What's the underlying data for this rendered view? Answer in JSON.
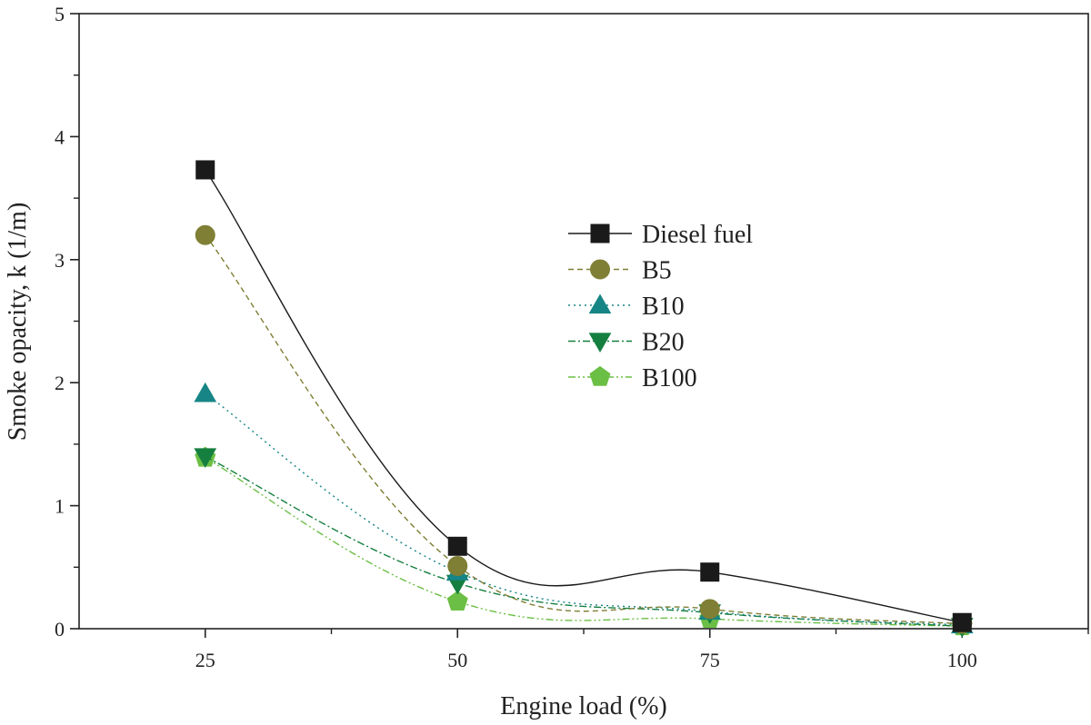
{
  "chart_data": {
    "type": "line",
    "title": "",
    "xlabel": "Engine load (%)",
    "ylabel": "Smoke opacity, k (1/m)",
    "x": [
      25,
      50,
      75,
      100
    ],
    "xlim": [
      12.5,
      112.5
    ],
    "ylim": [
      0,
      5
    ],
    "xticks": [
      25,
      50,
      75,
      100
    ],
    "yticks": [
      0,
      1,
      2,
      3,
      4,
      5
    ],
    "grid": false,
    "legend_position": "center-right",
    "series": [
      {
        "name": "Diesel fuel",
        "values": [
          3.73,
          0.67,
          0.46,
          0.05
        ],
        "color": "#1a1a1a",
        "marker": "square",
        "dash": "solid"
      },
      {
        "name": "B5",
        "values": [
          3.2,
          0.51,
          0.16,
          0.04
        ],
        "color": "#7f7f35",
        "marker": "circle",
        "dash": "dashed"
      },
      {
        "name": "B10",
        "values": [
          1.91,
          0.46,
          0.14,
          0.03
        ],
        "color": "#178585",
        "marker": "triangle-up",
        "dash": "dotted"
      },
      {
        "name": "B20",
        "values": [
          1.4,
          0.37,
          0.13,
          0.02
        ],
        "color": "#157f3f",
        "marker": "triangle-down",
        "dash": "dash-dot"
      },
      {
        "name": "B100",
        "values": [
          1.39,
          0.22,
          0.08,
          0.02
        ],
        "color": "#6cbf45",
        "marker": "pentagon",
        "dash": "dash-dot-dot"
      }
    ]
  }
}
